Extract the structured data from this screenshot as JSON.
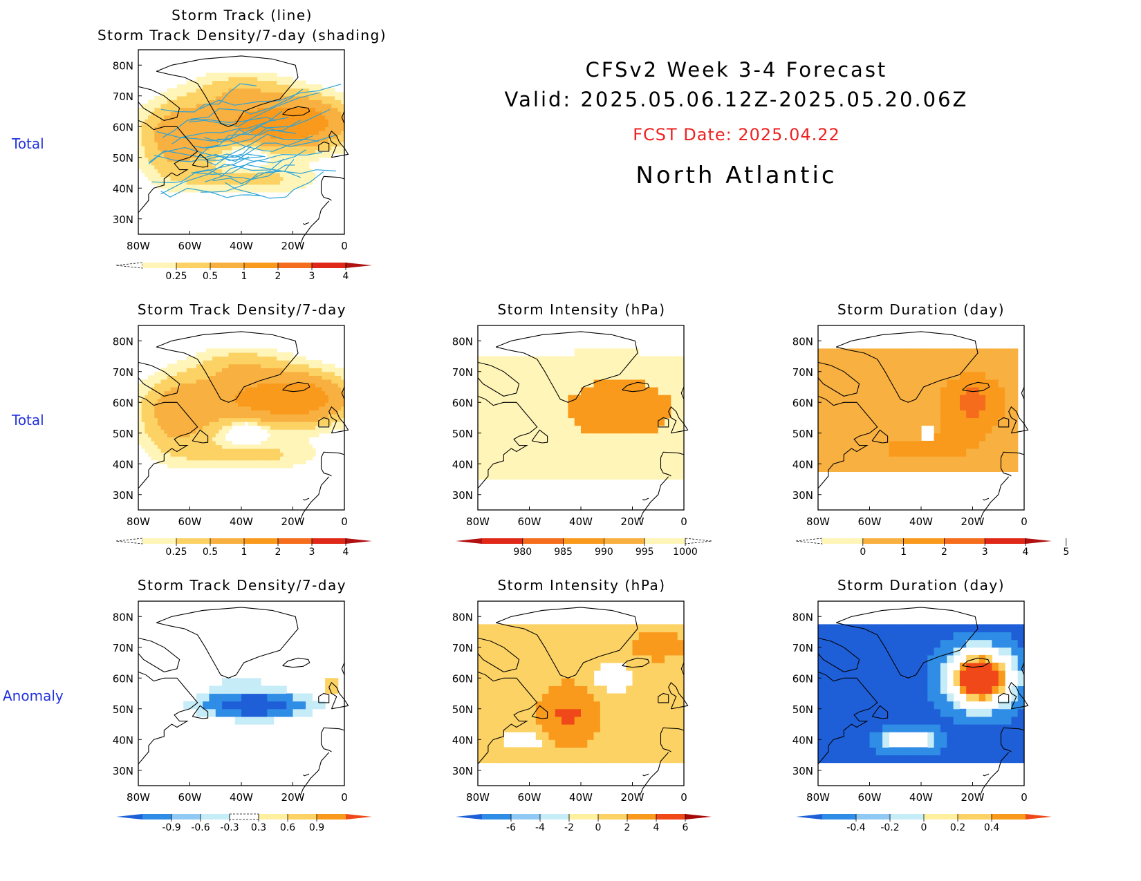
{
  "header": {
    "line1": "CFSv2 Week 3-4 Forecast",
    "line2": "Valid: 2025.05.06.12Z-2025.05.20.06Z",
    "fcst_date": "FCST Date: 2025.04.22",
    "region": "North Atlantic"
  },
  "row_labels": [
    "Total",
    "Total",
    "Anomaly"
  ],
  "axis": {
    "lat_labels": [
      "80N",
      "70N",
      "60N",
      "50N",
      "40N",
      "30N"
    ],
    "lon_labels": [
      "80W",
      "60W",
      "40W",
      "20W",
      "0"
    ]
  },
  "panels": [
    {
      "id": "p0",
      "title_lines": [
        "Storm Track (line)",
        "Storm Track Density/7-day (shading)"
      ],
      "row": 0,
      "col": 0,
      "palette": "warm",
      "tracks": true,
      "colorbar": {
        "labels": [
          "0.25",
          "0.5",
          "1",
          "2",
          "3",
          "4"
        ],
        "colors": [
          "#ffffff",
          "#fff5b8",
          "#fcd264",
          "#f8b040",
          "#f99a1c",
          "#f56d1c",
          "#e02818",
          "#b01010"
        ]
      }
    },
    {
      "id": "p1",
      "title_lines": [
        "Storm Track Density/7-day"
      ],
      "row": 1,
      "col": 0,
      "palette": "warm",
      "colorbar": {
        "labels": [
          "0.25",
          "0.5",
          "1",
          "2",
          "3",
          "4"
        ],
        "colors": [
          "#ffffff",
          "#fff5b8",
          "#fcd264",
          "#f8b040",
          "#f99a1c",
          "#f56d1c",
          "#e02818",
          "#b01010"
        ]
      }
    },
    {
      "id": "p2",
      "title_lines": [
        "Storm Intensity (hPa)"
      ],
      "row": 1,
      "col": 1,
      "palette": "intensity",
      "colorbar": {
        "labels": [
          "980",
          "985",
          "990",
          "995",
          "1000"
        ],
        "colors": [
          "#b01010",
          "#e02818",
          "#f56d1c",
          "#f99a1c",
          "#f8b040",
          "#fff5b8",
          "#ffffff"
        ]
      }
    },
    {
      "id": "p3",
      "title_lines": [
        "Storm Duration (day)"
      ],
      "row": 1,
      "col": 2,
      "palette": "duration",
      "colorbar": {
        "labels": [
          "0",
          "1",
          "2",
          "3",
          "4",
          "5"
        ],
        "colors": [
          "#ffffff",
          "#fff5b8",
          "#f8b040",
          "#f99a1c",
          "#f56d1c",
          "#e02818",
          "#b01010"
        ]
      }
    },
    {
      "id": "p4",
      "title_lines": [
        "Storm Track Density/7-day"
      ],
      "row": 2,
      "col": 0,
      "palette": "anom",
      "colorbar": {
        "labels": [
          "-0.9",
          "-0.6",
          "-0.3",
          "0.3",
          "0.6",
          "0.9"
        ],
        "colors": [
          "#1e5fd8",
          "#2f8de6",
          "#8fc9f4",
          "#c6ecf8",
          "#ffffff",
          "#fff0a0",
          "#fcd264",
          "#f99a1c",
          "#f04818"
        ]
      }
    },
    {
      "id": "p5",
      "title_lines": [
        "Storm Intensity (hPa)"
      ],
      "row": 2,
      "col": 1,
      "palette": "anom",
      "colorbar": {
        "labels": [
          "-6",
          "-4",
          "-2",
          "0",
          "2",
          "4",
          "6"
        ],
        "colors": [
          "#1e5fd8",
          "#2f8de6",
          "#8fc9f4",
          "#c6ecf8",
          "#fff0a0",
          "#fcd264",
          "#f99a1c",
          "#f04818",
          "#a80808"
        ]
      }
    },
    {
      "id": "p6",
      "title_lines": [
        "Storm Duration (day)"
      ],
      "row": 2,
      "col": 2,
      "palette": "anom",
      "colorbar": {
        "labels": [
          "-0.4",
          "-0.2",
          "0",
          "0.2",
          "0.4"
        ],
        "colors": [
          "#1e5fd8",
          "#2f8de6",
          "#8fc9f4",
          "#c6ecf8",
          "#fff0a0",
          "#fcd264",
          "#f99a1c",
          "#f04818"
        ]
      }
    }
  ]
}
